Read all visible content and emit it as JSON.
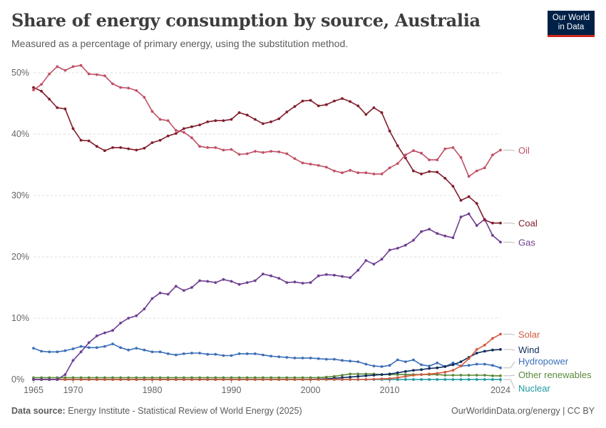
{
  "header": {
    "title": "Share of energy consumption by source, Australia",
    "subtitle": "Measured as a percentage of primary energy, using the substitution method.",
    "logo_line1": "Our World",
    "logo_line2": "in Data"
  },
  "footer": {
    "source_label": "Data source:",
    "source_text": "Energy Institute - Statistical Review of World Energy (2025)",
    "right_text": "OurWorldinData.org/energy | CC BY"
  },
  "colors": {
    "oil": "#c15065",
    "coal": "#801c2b",
    "gas": "#6d3e91",
    "solar": "#d05a3e",
    "wind": "#0f2d5b",
    "hydropower": "#3c6fb8",
    "other_renewables": "#5a8a3a",
    "nuclear": "#1c9aa0"
  },
  "chart_data": {
    "type": "line",
    "title": "Share of energy consumption by source, Australia",
    "xlim": [
      1965,
      2024
    ],
    "ylim": [
      0,
      50
    ],
    "x_ticks": [
      "1965",
      "1970",
      "1980",
      "1990",
      "2000",
      "2010",
      "2024"
    ],
    "y_ticks": [
      "0%",
      "10%",
      "20%",
      "30%",
      "40%",
      "50%"
    ],
    "grid": "horizontal dashed",
    "legend": "end-of-line labels on the right",
    "x": [
      1965,
      1966,
      1967,
      1968,
      1969,
      1970,
      1971,
      1972,
      1973,
      1974,
      1975,
      1976,
      1977,
      1978,
      1979,
      1980,
      1981,
      1982,
      1983,
      1984,
      1985,
      1986,
      1987,
      1988,
      1989,
      1990,
      1991,
      1992,
      1993,
      1994,
      1995,
      1996,
      1997,
      1998,
      1999,
      2000,
      2001,
      2002,
      2003,
      2004,
      2005,
      2006,
      2007,
      2008,
      2009,
      2010,
      2011,
      2012,
      2013,
      2014,
      2015,
      2016,
      2017,
      2018,
      2019,
      2020,
      2021,
      2022,
      2023,
      2024
    ],
    "series": [
      {
        "name": "Oil",
        "key": "oil",
        "values": [
          47.2,
          48.1,
          49.8,
          51.0,
          50.4,
          51.0,
          51.2,
          49.8,
          49.7,
          49.5,
          48.2,
          47.6,
          47.5,
          47.1,
          46.0,
          43.7,
          42.4,
          42.2,
          40.6,
          40.3,
          39.4,
          38.0,
          37.8,
          37.8,
          37.4,
          37.5,
          36.7,
          36.8,
          37.2,
          37.0,
          37.2,
          37.1,
          36.8,
          36.0,
          35.3,
          35.1,
          34.9,
          34.6,
          34.0,
          33.7,
          34.1,
          33.7,
          33.7,
          33.5,
          33.5,
          34.5,
          35.2,
          36.6,
          37.3,
          36.9,
          35.8,
          35.8,
          37.6,
          37.8,
          36.2,
          33.1,
          34.0,
          34.5,
          36.6,
          37.4
        ]
      },
      {
        "name": "Coal",
        "key": "coal",
        "values": [
          47.6,
          47.0,
          45.7,
          44.3,
          44.1,
          40.9,
          39.0,
          38.9,
          38.0,
          37.3,
          37.8,
          37.8,
          37.6,
          37.4,
          37.7,
          38.6,
          39.0,
          39.7,
          40.1,
          40.9,
          41.2,
          41.5,
          42.0,
          42.2,
          42.2,
          42.4,
          43.5,
          43.1,
          42.4,
          41.7,
          42.0,
          42.5,
          43.6,
          44.5,
          45.4,
          45.5,
          44.6,
          44.8,
          45.4,
          45.8,
          45.3,
          44.6,
          43.2,
          44.3,
          43.5,
          40.5,
          38.1,
          36.1,
          34.0,
          33.5,
          33.9,
          33.8,
          32.8,
          31.5,
          29.2,
          29.8,
          28.7,
          26.0,
          25.5,
          25.5
        ]
      },
      {
        "name": "Gas",
        "key": "gas",
        "values": [
          0.0,
          0.0,
          0.0,
          0.0,
          0.8,
          3.1,
          4.5,
          6.0,
          7.1,
          7.6,
          8.0,
          9.2,
          10.0,
          10.4,
          11.5,
          13.2,
          14.1,
          13.9,
          15.2,
          14.5,
          15.0,
          16.1,
          16.0,
          15.8,
          16.3,
          16.0,
          15.5,
          15.8,
          16.1,
          17.2,
          16.9,
          16.5,
          15.8,
          15.9,
          15.7,
          15.8,
          16.9,
          17.1,
          17.0,
          16.8,
          16.6,
          17.8,
          19.4,
          18.8,
          19.6,
          21.1,
          21.4,
          21.9,
          22.7,
          24.1,
          24.5,
          23.8,
          23.4,
          23.1,
          26.5,
          27.0,
          25.1,
          26.1,
          23.5,
          22.4
        ]
      },
      {
        "name": "Solar",
        "key": "solar",
        "values": [
          0.0,
          0.0,
          0.0,
          0.0,
          0.0,
          0.0,
          0.0,
          0.0,
          0.0,
          0.0,
          0.0,
          0.0,
          0.0,
          0.0,
          0.0,
          0.0,
          0.0,
          0.0,
          0.0,
          0.0,
          0.0,
          0.0,
          0.0,
          0.0,
          0.0,
          0.0,
          0.0,
          0.0,
          0.0,
          0.0,
          0.0,
          0.0,
          0.0,
          0.0,
          0.0,
          0.0,
          0.0,
          0.0,
          0.0,
          0.0,
          0.0,
          0.0,
          0.0,
          0.05,
          0.1,
          0.15,
          0.3,
          0.5,
          0.7,
          0.8,
          0.9,
          1.0,
          1.2,
          1.5,
          2.2,
          3.4,
          4.9,
          5.6,
          6.7,
          7.4
        ]
      },
      {
        "name": "Wind",
        "key": "wind",
        "values": [
          0.0,
          0.0,
          0.0,
          0.0,
          0.0,
          0.0,
          0.0,
          0.0,
          0.0,
          0.0,
          0.0,
          0.0,
          0.0,
          0.0,
          0.0,
          0.0,
          0.0,
          0.0,
          0.0,
          0.0,
          0.0,
          0.0,
          0.0,
          0.0,
          0.0,
          0.0,
          0.0,
          0.0,
          0.0,
          0.0,
          0.0,
          0.0,
          0.0,
          0.0,
          0.0,
          0.0,
          0.05,
          0.1,
          0.2,
          0.3,
          0.4,
          0.5,
          0.6,
          0.7,
          0.8,
          0.9,
          1.1,
          1.3,
          1.5,
          1.6,
          1.8,
          1.9,
          2.1,
          2.4,
          2.9,
          3.6,
          4.3,
          4.6,
          4.8,
          4.9
        ]
      },
      {
        "name": "Hydropower",
        "key": "hydropower",
        "values": [
          5.1,
          4.6,
          4.5,
          4.5,
          4.7,
          5.0,
          5.4,
          5.2,
          5.2,
          5.4,
          5.8,
          5.2,
          4.8,
          5.1,
          4.8,
          4.5,
          4.5,
          4.2,
          4.0,
          4.2,
          4.3,
          4.3,
          4.1,
          4.1,
          3.9,
          3.9,
          4.2,
          4.2,
          4.2,
          4.0,
          3.8,
          3.7,
          3.6,
          3.5,
          3.5,
          3.5,
          3.4,
          3.3,
          3.3,
          3.1,
          3.0,
          2.9,
          2.5,
          2.2,
          2.1,
          2.3,
          3.2,
          2.9,
          3.2,
          2.4,
          2.2,
          2.7,
          2.1,
          2.7,
          2.2,
          2.3,
          2.5,
          2.5,
          2.3,
          1.9
        ]
      },
      {
        "name": "Other renewables",
        "key": "other_renewables",
        "values": [
          0.3,
          0.3,
          0.3,
          0.3,
          0.3,
          0.3,
          0.3,
          0.3,
          0.3,
          0.3,
          0.3,
          0.3,
          0.3,
          0.3,
          0.3,
          0.3,
          0.3,
          0.3,
          0.3,
          0.3,
          0.3,
          0.3,
          0.3,
          0.3,
          0.3,
          0.3,
          0.3,
          0.3,
          0.3,
          0.3,
          0.3,
          0.3,
          0.3,
          0.3,
          0.3,
          0.3,
          0.3,
          0.4,
          0.5,
          0.7,
          0.9,
          0.9,
          0.9,
          0.9,
          0.8,
          0.8,
          0.8,
          0.8,
          0.8,
          0.8,
          0.8,
          0.8,
          0.7,
          0.7,
          0.7,
          0.7,
          0.7,
          0.7,
          0.6,
          0.6
        ]
      },
      {
        "name": "Nuclear",
        "key": "nuclear",
        "values": [
          0,
          0,
          0,
          0,
          0,
          0,
          0,
          0,
          0,
          0,
          0,
          0,
          0,
          0,
          0,
          0,
          0,
          0,
          0,
          0,
          0,
          0,
          0,
          0,
          0,
          0,
          0,
          0,
          0,
          0,
          0,
          0,
          0,
          0,
          0,
          0,
          0,
          0,
          0,
          0,
          0,
          0,
          0,
          0,
          0,
          0,
          0,
          0,
          0,
          0,
          0,
          0,
          0,
          0,
          0,
          0,
          0,
          0,
          0,
          0
        ]
      }
    ]
  }
}
